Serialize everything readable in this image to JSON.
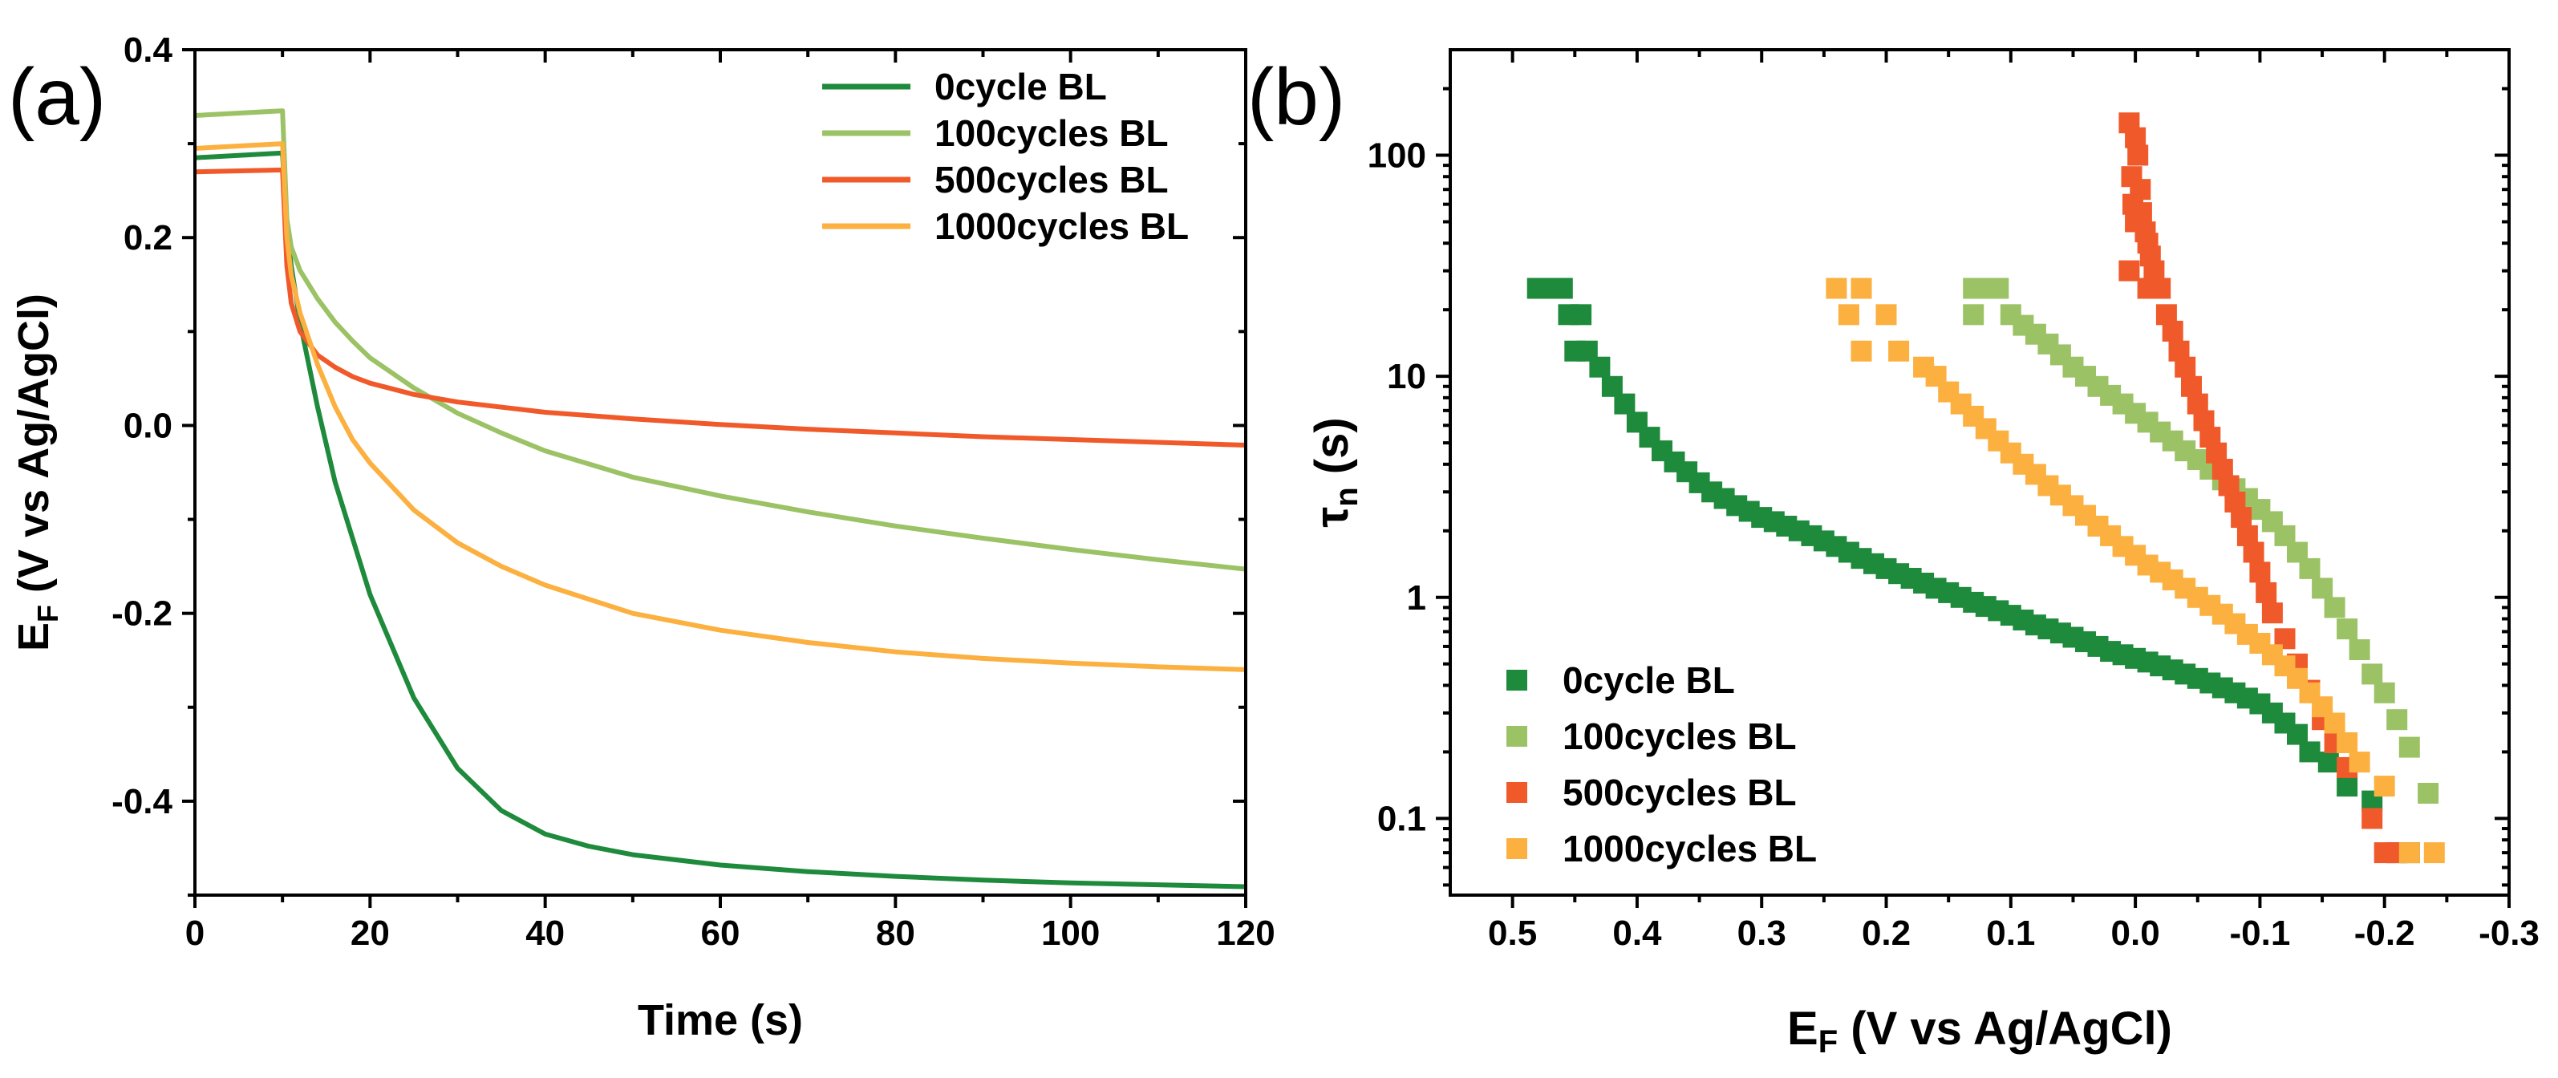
{
  "figure": {
    "panel_a_label": "(a)",
    "panel_b_label": "(b)"
  },
  "colors": {
    "0cycle": "#1e8a3c",
    "100cycles": "#9cc266",
    "500cycles": "#f0592a",
    "1000cycles": "#fbb040"
  },
  "chart_data": [
    {
      "type": "line",
      "panel": "(a)",
      "xlabel": "Time (s)",
      "ylabel_main": "E",
      "ylabel_sub": "F",
      "ylabel_rest": " (V vs Ag/AgCl)",
      "xlim": [
        0,
        120
      ],
      "ylim": [
        -0.5,
        0.4
      ],
      "xticks": [
        0,
        20,
        40,
        60,
        80,
        100,
        120
      ],
      "xtick_labels": [
        "0",
        "20",
        "40",
        "60",
        "80",
        "100",
        "120"
      ],
      "yticks": [
        0.4,
        0.2,
        0.0,
        -0.2,
        -0.4
      ],
      "ytick_labels": [
        "0.4",
        "0.2",
        "0.0",
        "-0.2",
        "-0.4"
      ],
      "legend_position": "top-right",
      "series": [
        {
          "name": "0cycle BL",
          "color_key": "0cycle",
          "x": [
            0,
            10,
            10.5,
            11,
            12,
            14,
            16,
            18,
            20,
            25,
            30,
            35,
            40,
            45,
            50,
            60,
            70,
            80,
            90,
            100,
            110,
            120
          ],
          "y": [
            0.285,
            0.29,
            0.21,
            0.17,
            0.11,
            0.02,
            -0.06,
            -0.12,
            -0.18,
            -0.29,
            -0.365,
            -0.41,
            -0.435,
            -0.448,
            -0.457,
            -0.468,
            -0.475,
            -0.48,
            -0.484,
            -0.487,
            -0.489,
            -0.491
          ]
        },
        {
          "name": "100cycles BL",
          "color_key": "100cycles",
          "x": [
            0,
            10,
            10.5,
            11,
            12,
            14,
            16,
            18,
            20,
            25,
            30,
            35,
            40,
            50,
            60,
            70,
            80,
            90,
            100,
            110,
            120
          ],
          "y": [
            0.33,
            0.335,
            0.22,
            0.19,
            0.165,
            0.135,
            0.11,
            0.09,
            0.072,
            0.04,
            0.013,
            -0.008,
            -0.027,
            -0.055,
            -0.075,
            -0.092,
            -0.107,
            -0.12,
            -0.132,
            -0.143,
            -0.153
          ]
        },
        {
          "name": "500cycles BL",
          "color_key": "500cycles",
          "x": [
            0,
            10,
            10.5,
            11,
            12,
            14,
            16,
            18,
            20,
            25,
            30,
            40,
            50,
            60,
            70,
            80,
            90,
            100,
            110,
            120
          ],
          "y": [
            0.27,
            0.272,
            0.17,
            0.13,
            0.1,
            0.075,
            0.062,
            0.052,
            0.045,
            0.033,
            0.025,
            0.014,
            0.007,
            0.001,
            -0.004,
            -0.008,
            -0.012,
            -0.015,
            -0.018,
            -0.021
          ]
        },
        {
          "name": "1000cycles BL",
          "color_key": "1000cycles",
          "x": [
            0,
            10,
            10.5,
            11,
            12,
            14,
            16,
            18,
            20,
            25,
            30,
            35,
            40,
            50,
            60,
            70,
            80,
            90,
            100,
            110,
            120
          ],
          "y": [
            0.295,
            0.3,
            0.2,
            0.16,
            0.12,
            0.065,
            0.02,
            -0.015,
            -0.04,
            -0.09,
            -0.125,
            -0.15,
            -0.17,
            -0.2,
            -0.218,
            -0.231,
            -0.241,
            -0.248,
            -0.253,
            -0.257,
            -0.26
          ]
        }
      ]
    },
    {
      "type": "scatter",
      "panel": "(b)",
      "xlabel_main": "E",
      "xlabel_sub": "F",
      "xlabel_rest": " (V vs Ag/AgCl)",
      "ylabel_main": "τ",
      "ylabel_sub": "n",
      "ylabel_rest": " (s)",
      "x_reversed": true,
      "xlim": [
        0.55,
        -0.3
      ],
      "ylim": [
        0.045,
        300
      ],
      "yscale": "log",
      "xticks": [
        0.5,
        0.4,
        0.3,
        0.2,
        0.1,
        0.0,
        -0.1,
        -0.2,
        -0.3
      ],
      "xtick_labels": [
        "0.5",
        "0.4",
        "0.3",
        "0.2",
        "0.1",
        "0.0",
        "-0.1",
        "-0.2",
        "-0.3"
      ],
      "yticks": [
        100,
        10,
        1,
        0.1
      ],
      "ytick_labels": [
        "100",
        "10",
        "1",
        "0.1"
      ],
      "legend_position": "bottom-left",
      "series": [
        {
          "name": "0cycle BL",
          "color_key": "0cycle",
          "points": [
            [
              0.48,
              25
            ],
            [
              0.47,
              25
            ],
            [
              0.46,
              25
            ],
            [
              0.455,
              19
            ],
            [
              0.445,
              19
            ],
            [
              0.45,
              13
            ],
            [
              0.44,
              13
            ],
            [
              0.43,
              11
            ],
            [
              0.42,
              9
            ],
            [
              0.41,
              7.5
            ],
            [
              0.4,
              6.2
            ],
            [
              0.39,
              5.3
            ],
            [
              0.38,
              4.6
            ],
            [
              0.37,
              4.1
            ],
            [
              0.36,
              3.7
            ],
            [
              0.35,
              3.3
            ],
            [
              0.34,
              3.0
            ],
            [
              0.33,
              2.8
            ],
            [
              0.32,
              2.6
            ],
            [
              0.31,
              2.45
            ],
            [
              0.3,
              2.3
            ],
            [
              0.29,
              2.2
            ],
            [
              0.28,
              2.1
            ],
            [
              0.27,
              2.0
            ],
            [
              0.26,
              1.9
            ],
            [
              0.25,
              1.8
            ],
            [
              0.24,
              1.7
            ],
            [
              0.23,
              1.6
            ],
            [
              0.22,
              1.5
            ],
            [
              0.21,
              1.42
            ],
            [
              0.2,
              1.35
            ],
            [
              0.19,
              1.28
            ],
            [
              0.18,
              1.22
            ],
            [
              0.17,
              1.16
            ],
            [
              0.16,
              1.1
            ],
            [
              0.15,
              1.05
            ],
            [
              0.14,
              1.0
            ],
            [
              0.13,
              0.95
            ],
            [
              0.12,
              0.91
            ],
            [
              0.11,
              0.87
            ],
            [
              0.1,
              0.83
            ],
            [
              0.09,
              0.79
            ],
            [
              0.08,
              0.75
            ],
            [
              0.07,
              0.72
            ],
            [
              0.06,
              0.69
            ],
            [
              0.05,
              0.66
            ],
            [
              0.04,
              0.63
            ],
            [
              0.03,
              0.6
            ],
            [
              0.02,
              0.57
            ],
            [
              0.01,
              0.55
            ],
            [
              0.0,
              0.53
            ],
            [
              -0.01,
              0.51
            ],
            [
              -0.02,
              0.49
            ],
            [
              -0.03,
              0.47
            ],
            [
              -0.04,
              0.45
            ],
            [
              -0.05,
              0.43
            ],
            [
              -0.06,
              0.41
            ],
            [
              -0.07,
              0.39
            ],
            [
              -0.08,
              0.37
            ],
            [
              -0.09,
              0.35
            ],
            [
              -0.1,
              0.33
            ],
            [
              -0.11,
              0.3
            ],
            [
              -0.12,
              0.27
            ],
            [
              -0.13,
              0.24
            ],
            [
              -0.14,
              0.2
            ],
            [
              -0.155,
              0.18
            ],
            [
              -0.17,
              0.14
            ],
            [
              -0.19,
              0.12
            ],
            [
              -0.21,
              0.07
            ],
            [
              -0.22,
              0.07
            ]
          ]
        },
        {
          "name": "100cycles BL",
          "color_key": "100cycles",
          "points": [
            [
              0.13,
              25
            ],
            [
              0.12,
              25
            ],
            [
              0.11,
              25
            ],
            [
              0.13,
              19
            ],
            [
              0.1,
              19
            ],
            [
              0.09,
              17
            ],
            [
              0.08,
              15.5
            ],
            [
              0.07,
              14
            ],
            [
              0.06,
              12.5
            ],
            [
              0.05,
              11
            ],
            [
              0.04,
              10
            ],
            [
              0.03,
              9
            ],
            [
              0.02,
              8.2
            ],
            [
              0.01,
              7.5
            ],
            [
              0.0,
              6.8
            ],
            [
              -0.01,
              6.2
            ],
            [
              -0.02,
              5.6
            ],
            [
              -0.03,
              5.1
            ],
            [
              -0.04,
              4.6
            ],
            [
              -0.05,
              4.2
            ],
            [
              -0.06,
              3.8
            ],
            [
              -0.07,
              3.4
            ],
            [
              -0.08,
              3.1
            ],
            [
              -0.09,
              2.8
            ],
            [
              -0.1,
              2.5
            ],
            [
              -0.11,
              2.2
            ],
            [
              -0.12,
              1.9
            ],
            [
              -0.13,
              1.6
            ],
            [
              -0.14,
              1.35
            ],
            [
              -0.15,
              1.1
            ],
            [
              -0.16,
              0.9
            ],
            [
              -0.17,
              0.72
            ],
            [
              -0.18,
              0.58
            ],
            [
              -0.19,
              0.45
            ],
            [
              -0.2,
              0.37
            ],
            [
              -0.21,
              0.28
            ],
            [
              -0.22,
              0.21
            ],
            [
              -0.235,
              0.13
            ]
          ]
        },
        {
          "name": "500cycles BL",
          "color_key": "500cycles",
          "points": [
            [
              0.005,
              140
            ],
            [
              0.0,
              120
            ],
            [
              -0.002,
              100
            ],
            [
              0.003,
              80
            ],
            [
              -0.004,
              70
            ],
            [
              0.002,
              60
            ],
            [
              -0.005,
              55
            ],
            [
              0.0,
              50
            ],
            [
              -0.008,
              45
            ],
            [
              -0.01,
              40
            ],
            [
              -0.012,
              35
            ],
            [
              -0.015,
              30
            ],
            [
              0.005,
              30
            ],
            [
              -0.01,
              25
            ],
            [
              -0.02,
              25
            ],
            [
              -0.025,
              19
            ],
            [
              -0.03,
              16
            ],
            [
              -0.035,
              13
            ],
            [
              -0.04,
              11
            ],
            [
              -0.045,
              9
            ],
            [
              -0.05,
              7.5
            ],
            [
              -0.055,
              6.3
            ],
            [
              -0.06,
              5.3
            ],
            [
              -0.065,
              4.5
            ],
            [
              -0.07,
              3.8
            ],
            [
              -0.075,
              3.2
            ],
            [
              -0.08,
              2.7
            ],
            [
              -0.085,
              2.3
            ],
            [
              -0.09,
              1.9
            ],
            [
              -0.095,
              1.6
            ],
            [
              -0.1,
              1.3
            ],
            [
              -0.105,
              1.05
            ],
            [
              -0.11,
              0.85
            ],
            [
              -0.12,
              0.65
            ],
            [
              -0.13,
              0.5
            ],
            [
              -0.14,
              0.38
            ],
            [
              -0.15,
              0.28
            ],
            [
              -0.16,
              0.22
            ],
            [
              -0.17,
              0.17
            ],
            [
              -0.19,
              0.1
            ],
            [
              -0.2,
              0.07
            ],
            [
              -0.21,
              0.07
            ]
          ]
        },
        {
          "name": "1000cycles BL",
          "color_key": "1000cycles",
          "points": [
            [
              0.24,
              25
            ],
            [
              0.22,
              25
            ],
            [
              0.23,
              19
            ],
            [
              0.2,
              19
            ],
            [
              0.22,
              13
            ],
            [
              0.19,
              13
            ],
            [
              0.17,
              11
            ],
            [
              0.16,
              10
            ],
            [
              0.15,
              8.5
            ],
            [
              0.14,
              7.5
            ],
            [
              0.13,
              6.6
            ],
            [
              0.12,
              5.8
            ],
            [
              0.11,
              5.1
            ],
            [
              0.1,
              4.5
            ],
            [
              0.09,
              4.0
            ],
            [
              0.08,
              3.6
            ],
            [
              0.07,
              3.2
            ],
            [
              0.06,
              2.9
            ],
            [
              0.05,
              2.6
            ],
            [
              0.04,
              2.35
            ],
            [
              0.03,
              2.1
            ],
            [
              0.02,
              1.9
            ],
            [
              0.01,
              1.7
            ],
            [
              0.0,
              1.55
            ],
            [
              -0.01,
              1.4
            ],
            [
              -0.02,
              1.3
            ],
            [
              -0.03,
              1.2
            ],
            [
              -0.04,
              1.1
            ],
            [
              -0.05,
              1.0
            ],
            [
              -0.06,
              0.92
            ],
            [
              -0.07,
              0.84
            ],
            [
              -0.08,
              0.76
            ],
            [
              -0.09,
              0.68
            ],
            [
              -0.1,
              0.62
            ],
            [
              -0.11,
              0.55
            ],
            [
              -0.12,
              0.49
            ],
            [
              -0.13,
              0.43
            ],
            [
              -0.14,
              0.37
            ],
            [
              -0.15,
              0.32
            ],
            [
              -0.16,
              0.27
            ],
            [
              -0.17,
              0.22
            ],
            [
              -0.18,
              0.18
            ],
            [
              -0.2,
              0.14
            ],
            [
              -0.22,
              0.07
            ],
            [
              -0.24,
              0.07
            ]
          ]
        }
      ]
    }
  ]
}
